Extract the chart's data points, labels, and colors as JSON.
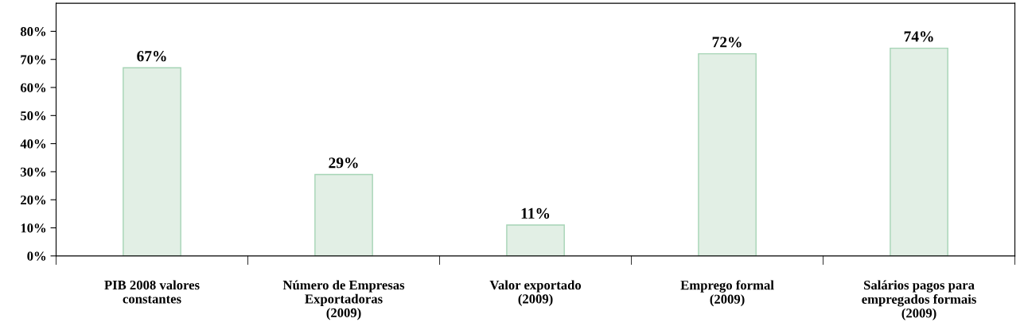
{
  "chart_data": {
    "type": "bar",
    "categories": [
      "PIB 2008 valores\nconstantes",
      "Número de Empresas\nExportadoras\n(2009)",
      "Valor exportado\n(2009)",
      "Emprego formal\n(2009)",
      "Salários pagos para\nempregados formais\n(2009)"
    ],
    "values": [
      67,
      29,
      11,
      72,
      74
    ],
    "value_labels": [
      "67%",
      "29%",
      "11%",
      "72%",
      "74%"
    ],
    "color": "#e2efe5",
    "ylim": [
      0,
      90
    ],
    "yticks": [
      {
        "value": 0,
        "label": "0%"
      },
      {
        "value": 10,
        "label": "10%"
      },
      {
        "value": 20,
        "label": "20%"
      },
      {
        "value": 30,
        "label": "30%"
      },
      {
        "value": 40,
        "label": "40%"
      },
      {
        "value": 50,
        "label": "50%"
      },
      {
        "value": 60,
        "label": "60%"
      },
      {
        "value": 70,
        "label": "70%"
      },
      {
        "value": 80,
        "label": "80%"
      }
    ],
    "grid": false,
    "legend": false
  }
}
